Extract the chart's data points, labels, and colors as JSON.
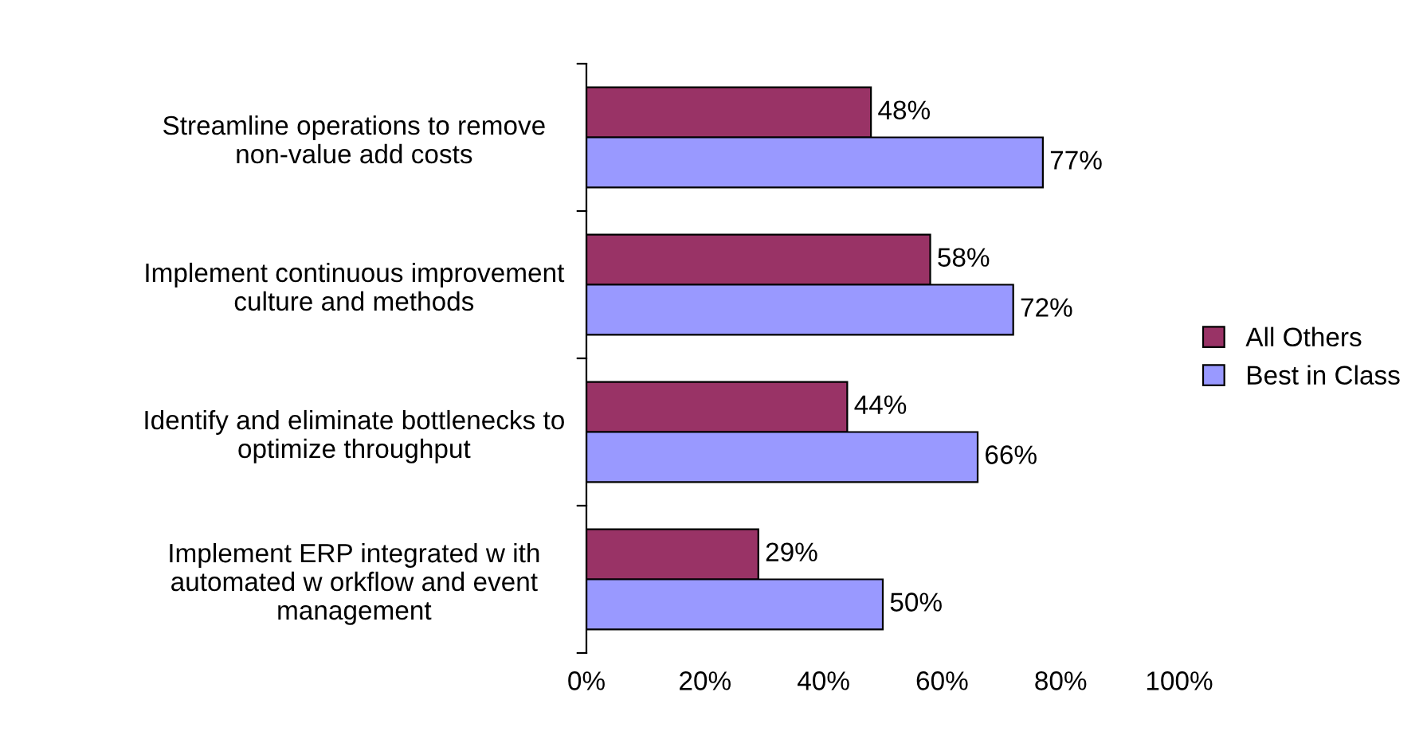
{
  "chart_data": {
    "type": "bar",
    "orientation": "horizontal",
    "categories": [
      "Streamline operations to remove\nnon-value add costs",
      "Implement continuous improvement\nculture and methods",
      "Identify and eliminate bottlenecks to\noptimize throughput",
      "Implement ERP integrated w ith\nautomated w orkflow and event\nmanagement"
    ],
    "series": [
      {
        "name": "All Others",
        "color": "#993366",
        "values": [
          48,
          58,
          44,
          29
        ],
        "value_labels": [
          "48%",
          "58%",
          "44%",
          "29%"
        ]
      },
      {
        "name": "Best in Class",
        "color": "#9999ff",
        "values": [
          77,
          72,
          66,
          50
        ],
        "value_labels": [
          "77%",
          "72%",
          "66%",
          "50%"
        ]
      }
    ],
    "xlim": [
      0,
      100
    ],
    "xticks": [
      {
        "value": 0,
        "label": "0%"
      },
      {
        "value": 20,
        "label": "20%"
      },
      {
        "value": 40,
        "label": "40%"
      },
      {
        "value": 60,
        "label": "60%"
      },
      {
        "value": 80,
        "label": "80%"
      },
      {
        "value": 100,
        "label": "100%"
      }
    ],
    "grid": false,
    "legend": "right"
  }
}
